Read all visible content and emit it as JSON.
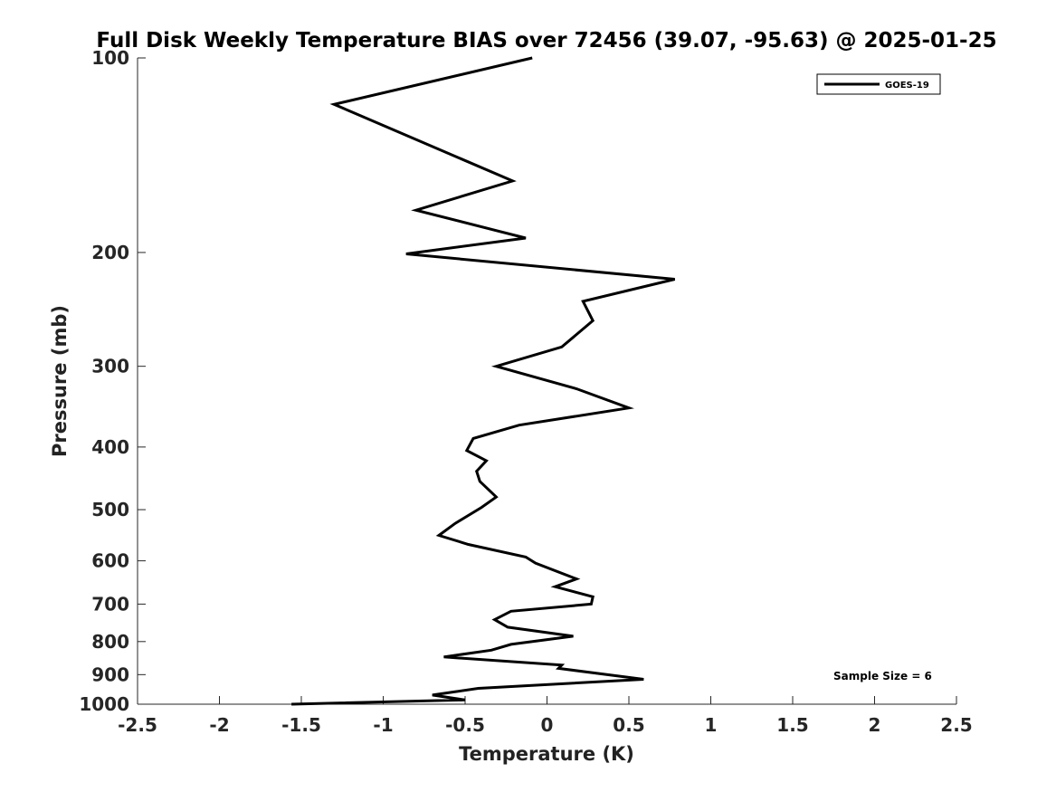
{
  "chart_data": {
    "type": "line",
    "title": "Full Disk Weekly Temperature BIAS over 72456 (39.07, -95.63) @ 2025-01-25",
    "xlabel": "Temperature (K)",
    "ylabel": "Pressure (mb)",
    "xlim": [
      -2.5,
      2.5
    ],
    "ylim": [
      100,
      1000
    ],
    "yscale": "log",
    "y_reversed": true,
    "xticks": [
      -2.5,
      -2,
      -1.5,
      -1,
      -0.5,
      0,
      0.5,
      1,
      1.5,
      2,
      2.5
    ],
    "xtick_labels": [
      "-2.5",
      "-2",
      "-1.5",
      "-1",
      "-0.5",
      "0",
      "0.5",
      "1",
      "1.5",
      "2",
      "2.5"
    ],
    "yticks": [
      100,
      200,
      300,
      400,
      500,
      600,
      700,
      800,
      900,
      1000
    ],
    "ytick_labels": [
      "100",
      "200",
      "300",
      "400",
      "500",
      "600",
      "700",
      "800",
      "900",
      "1000"
    ],
    "grid": false,
    "legend": {
      "position": "top-right",
      "entries": [
        "GOES-19"
      ]
    },
    "annotation": "Sample Size = 6",
    "series": [
      {
        "name": "GOES-19",
        "color": "#000000",
        "points": [
          [
            -0.09,
            100
          ],
          [
            -1.3,
            118
          ],
          [
            -0.21,
            155
          ],
          [
            -0.8,
            172
          ],
          [
            -0.13,
            190
          ],
          [
            -0.86,
            201
          ],
          [
            0.78,
            220
          ],
          [
            0.22,
            238
          ],
          [
            0.28,
            255
          ],
          [
            0.09,
            280
          ],
          [
            -0.31,
            300
          ],
          [
            0.18,
            325
          ],
          [
            0.5,
            348
          ],
          [
            -0.17,
            370
          ],
          [
            -0.45,
            388
          ],
          [
            -0.49,
            405
          ],
          [
            -0.37,
            420
          ],
          [
            -0.43,
            436
          ],
          [
            -0.41,
            452
          ],
          [
            -0.31,
            478
          ],
          [
            -0.4,
            496
          ],
          [
            -0.56,
            525
          ],
          [
            -0.66,
            548
          ],
          [
            -0.48,
            566
          ],
          [
            -0.13,
            592
          ],
          [
            -0.07,
            605
          ],
          [
            0.18,
            640
          ],
          [
            0.05,
            658
          ],
          [
            0.28,
            682
          ],
          [
            0.27,
            700
          ],
          [
            -0.22,
            718
          ],
          [
            -0.32,
            740
          ],
          [
            -0.24,
            760
          ],
          [
            0.16,
            785
          ],
          [
            -0.22,
            808
          ],
          [
            -0.34,
            825
          ],
          [
            -0.63,
            845
          ],
          [
            0.09,
            870
          ],
          [
            0.07,
            880
          ],
          [
            0.44,
            905
          ],
          [
            0.59,
            915
          ],
          [
            -0.42,
            945
          ],
          [
            -0.7,
            968
          ],
          [
            -0.5,
            985
          ],
          [
            -1.56,
            1000
          ]
        ]
      }
    ]
  }
}
